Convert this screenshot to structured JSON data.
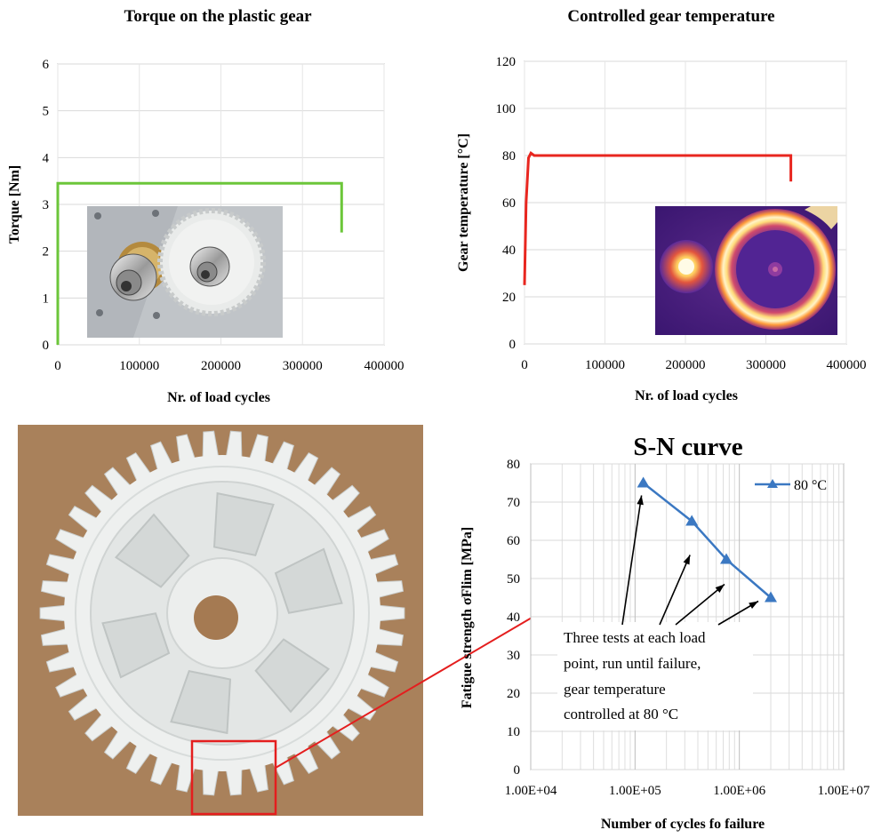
{
  "torque_chart": {
    "title": "Torque on the plastic gear",
    "xlabel": "Nr. of load cycles",
    "ylabel": "Torque [Nm]",
    "color": "#6cc63a"
  },
  "temp_chart": {
    "title": "Controlled gear temperature",
    "xlabel": "Nr. of load cycles",
    "ylabel": "Gear temperature [°C]",
    "color": "#e8261f"
  },
  "sn_chart": {
    "title": "S-N curve",
    "xlabel": "Number of cycles fo failure",
    "ylabel": "Fatigue strength σFlim [MPa]",
    "color": "#3b78c2",
    "annotation": [
      "Three tests at each load",
      "point, run until failure,",
      "gear temperature",
      "controlled at 80 °C"
    ]
  },
  "photo": {
    "background": "#b48a61",
    "gear_color": "#eef0ef",
    "highlight_color": "#e41e1e"
  },
  "chart_data": [
    {
      "type": "line",
      "title": "Torque on the plastic gear",
      "xlabel": "Nr. of load cycles",
      "ylabel": "Torque [Nm]",
      "xlim": [
        0,
        400000
      ],
      "ylim": [
        0,
        6
      ],
      "xticks": [
        "0",
        "100000",
        "200000",
        "300000",
        "400000"
      ],
      "yticks": [
        "0",
        "1",
        "2",
        "3",
        "4",
        "5",
        "6"
      ],
      "grid": true,
      "series": [
        {
          "x": [
            0,
            0,
            5000,
            345000,
            348000,
            348000
          ],
          "y": [
            0,
            3.45,
            3.45,
            3.45,
            3.45,
            2.4
          ]
        }
      ]
    },
    {
      "type": "line",
      "title": "Controlled gear temperature",
      "xlabel": "Nr. of load cycles",
      "ylabel": "Gear temperature [°C]",
      "xlim": [
        0,
        400000
      ],
      "ylim": [
        0,
        120
      ],
      "xticks": [
        "0",
        "100000",
        "200000",
        "300000",
        "400000"
      ],
      "yticks": [
        "0",
        "20",
        "40",
        "60",
        "80",
        "100",
        "120"
      ],
      "grid": true,
      "series": [
        {
          "x": [
            0,
            2000,
            5000,
            8000,
            12000,
            330000,
            331000,
            331000
          ],
          "y": [
            25,
            60,
            79,
            81,
            80,
            80,
            80,
            69
          ]
        }
      ]
    },
    {
      "type": "line",
      "title": "S-N curve",
      "xlabel": "Number of cycles fo failure",
      "ylabel": "Fatigue strength σFlim [MPa]",
      "xscale": "log",
      "xlim": [
        10000,
        10000000
      ],
      "ylim": [
        0,
        80
      ],
      "xticks": [
        "1.00E+04",
        "1.00E+05",
        "1.00E+06",
        "1.00E+07"
      ],
      "yticks": [
        "0",
        "10",
        "20",
        "30",
        "40",
        "50",
        "60",
        "70",
        "80"
      ],
      "grid": true,
      "legend_position": "top-right",
      "series": [
        {
          "name": "80 °C",
          "x": [
            120000,
            350000,
            750000,
            2000000
          ],
          "y": [
            75,
            65,
            55,
            45
          ]
        }
      ]
    }
  ]
}
